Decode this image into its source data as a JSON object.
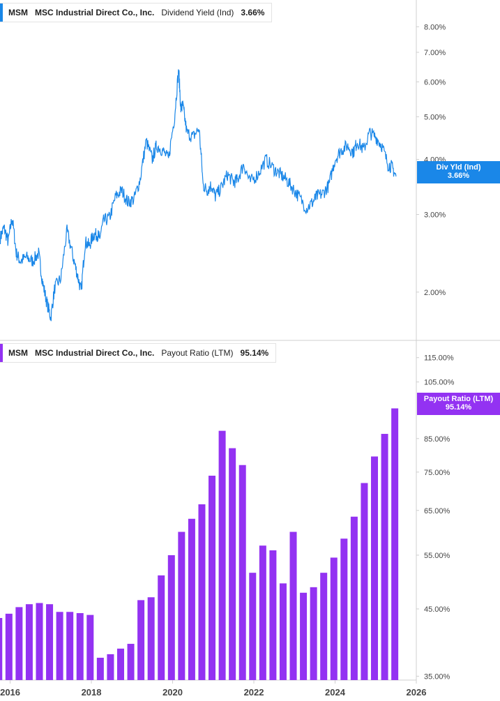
{
  "chart_data": [
    {
      "type": "line",
      "scale": "log",
      "legend": {
        "ticker": "MSM",
        "company": "MSC Industrial Direct Co., Inc.",
        "metric": "Dividend Yield (Ind)",
        "value": "3.66%"
      },
      "tag": {
        "label": "Div Yld (Ind)",
        "value": "3.66%"
      },
      "color": "#1a87e8",
      "y_ticks": [
        "8.00%",
        "7.00%",
        "6.00%",
        "5.00%",
        "4.00%",
        "3.00%",
        "2.00%"
      ],
      "y_tick_values": [
        8,
        7,
        6,
        5,
        4,
        3,
        2
      ],
      "ylim": [
        1.6,
        9.2
      ],
      "xlim": [
        2015.75,
        2026.0
      ],
      "series": {
        "name": "Dividend Yield (Ind)",
        "x": [
          2015.75,
          2015.85,
          2015.95,
          2016.05,
          2016.15,
          2016.25,
          2016.4,
          2016.55,
          2016.7,
          2016.8,
          2016.9,
          2017.0,
          2017.1,
          2017.25,
          2017.4,
          2017.55,
          2017.65,
          2017.75,
          2017.85,
          2017.95,
          2018.05,
          2018.15,
          2018.2,
          2018.3,
          2018.45,
          2018.6,
          2018.75,
          2018.9,
          2019.05,
          2019.2,
          2019.35,
          2019.5,
          2019.6,
          2019.75,
          2019.9,
          2020.05,
          2020.15,
          2020.2,
          2020.25,
          2020.35,
          2020.5,
          2020.65,
          2020.75,
          2020.85,
          2020.95,
          2021.05,
          2021.2,
          2021.35,
          2021.5,
          2021.6,
          2021.75,
          2021.9,
          2022.1,
          2022.3,
          2022.5,
          2022.65,
          2022.8,
          2022.95,
          2023.1,
          2023.3,
          2023.45,
          2023.55,
          2023.7,
          2023.85,
          2024.0,
          2024.15,
          2024.3,
          2024.45,
          2024.55,
          2024.7,
          2024.85,
          2025.0,
          2025.15,
          2025.3,
          2025.4,
          2025.5
        ],
        "values": [
          2.65,
          2.8,
          2.6,
          2.95,
          2.45,
          2.35,
          2.4,
          2.35,
          2.45,
          2.1,
          1.9,
          1.75,
          2.05,
          2.15,
          2.75,
          2.4,
          2.2,
          2.0,
          2.6,
          2.55,
          2.7,
          2.7,
          2.65,
          2.9,
          2.95,
          3.3,
          3.4,
          3.2,
          3.25,
          3.6,
          4.4,
          4.0,
          4.3,
          4.2,
          4.0,
          5.0,
          6.4,
          5.2,
          5.3,
          4.6,
          4.5,
          4.7,
          3.5,
          3.4,
          3.5,
          3.3,
          3.45,
          3.7,
          3.55,
          3.6,
          3.9,
          3.55,
          3.7,
          4.0,
          3.8,
          3.7,
          3.6,
          3.45,
          3.3,
          3.1,
          3.2,
          3.3,
          3.35,
          3.5,
          4.0,
          4.2,
          4.3,
          4.15,
          4.4,
          4.2,
          4.6,
          4.5,
          4.3,
          3.9,
          3.85,
          3.66
        ]
      }
    },
    {
      "type": "bar",
      "scale": "log",
      "legend": {
        "ticker": "MSM",
        "company": "MSC Industrial Direct Co., Inc.",
        "metric": "Payout Ratio (LTM)",
        "value": "95.14%"
      },
      "tag": {
        "label": "Payout Ratio (LTM)",
        "value": "95.14%"
      },
      "color": "#9332f2",
      "y_ticks": [
        "115.00%",
        "105.00%",
        "85.00%",
        "75.00%",
        "65.00%",
        "55.00%",
        "45.00%",
        "35.00%"
      ],
      "y_tick_values": [
        115,
        105,
        85,
        75,
        65,
        55,
        45,
        35
      ],
      "ylim": [
        34.5,
        122
      ],
      "xlim": [
        2015.75,
        2026.0
      ],
      "x_ticks": [
        "2016",
        "2018",
        "2020",
        "2022",
        "2024",
        "2026"
      ],
      "x_tick_values": [
        2016,
        2018,
        2020,
        2022,
        2024,
        2026
      ],
      "x": [
        2015.72,
        2015.97,
        2016.22,
        2016.47,
        2016.72,
        2016.97,
        2017.22,
        2017.47,
        2017.72,
        2017.97,
        2018.22,
        2018.47,
        2018.72,
        2018.97,
        2019.22,
        2019.47,
        2019.72,
        2019.97,
        2020.22,
        2020.47,
        2020.72,
        2020.97,
        2021.22,
        2021.47,
        2021.72,
        2021.97,
        2022.22,
        2022.47,
        2022.72,
        2022.97,
        2023.22,
        2023.47,
        2023.72,
        2023.97,
        2024.22,
        2024.47,
        2024.72,
        2024.97,
        2025.22,
        2025.47
      ],
      "values": [
        43.5,
        44.2,
        45.3,
        45.8,
        46.0,
        45.8,
        44.5,
        44.5,
        44.3,
        44.0,
        37.5,
        38.0,
        38.8,
        39.5,
        46.5,
        47.0,
        51.0,
        55.0,
        60.0,
        63.0,
        66.5,
        74.0,
        87.5,
        82.0,
        77.0,
        51.5,
        57.0,
        56.0,
        49.5,
        60.0,
        47.8,
        48.8,
        51.5,
        54.5,
        58.5,
        63.5,
        72.0,
        79.5,
        86.5,
        95.14
      ]
    }
  ]
}
